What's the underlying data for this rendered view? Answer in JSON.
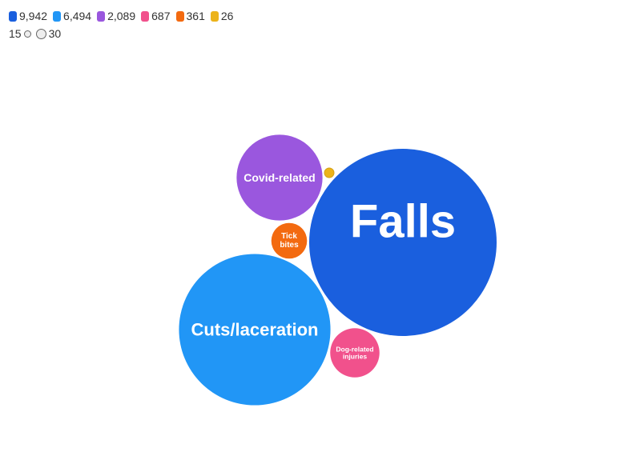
{
  "chart_data": {
    "type": "bubble",
    "series": [
      {
        "label": "Falls",
        "value": 9942,
        "value_label": "9,942",
        "color": "#1a5fde"
      },
      {
        "label": "Cuts/laceration",
        "value": 6494,
        "value_label": "6,494",
        "color": "#2196f6"
      },
      {
        "label": "Covid-related",
        "value": 2089,
        "value_label": "2,089",
        "color": "#9a57de"
      },
      {
        "label": "Dog-related injuries",
        "value": 687,
        "value_label": "687",
        "color": "#f1518c"
      },
      {
        "label": "Tick bites",
        "value": 361,
        "value_label": "361",
        "color": "#f36a10"
      },
      {
        "label": "",
        "value": 26,
        "value_label": "26",
        "color": "#ecb31a"
      }
    ],
    "size_legend": {
      "small": "15",
      "large": "30"
    }
  }
}
